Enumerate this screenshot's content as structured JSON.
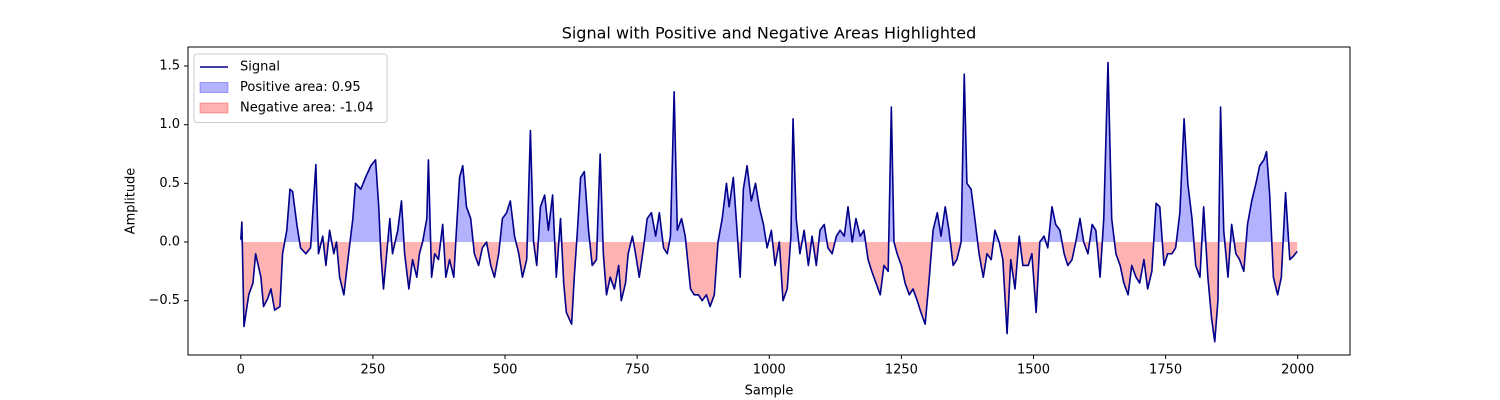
{
  "chart_data": {
    "type": "line",
    "title": "Signal with Positive and Negative Areas Highlighted",
    "xlabel": "Sample",
    "ylabel": "Amplitude",
    "xlim": [
      -99.95,
      2098.95
    ],
    "xticks": [
      0,
      250,
      500,
      750,
      1000,
      1250,
      1500,
      1750,
      2000
    ],
    "ylim": [
      -0.963,
      1.662
    ],
    "yticks": [
      {
        "value": -0.5,
        "label": "−0.5"
      },
      {
        "value": 0,
        "label": "0.0"
      },
      0.5,
      {
        "value": 1,
        "label": "1.0"
      },
      1.5
    ],
    "legend": "upper left",
    "x": [
      0,
      2,
      6,
      15,
      23,
      28,
      38,
      43,
      51,
      57,
      64,
      74,
      79,
      87,
      93,
      98,
      106,
      113,
      123,
      132,
      142,
      147,
      155,
      161,
      168,
      176,
      181,
      187,
      195,
      204,
      212,
      217,
      227,
      236,
      246,
      255,
      261,
      265,
      270,
      276,
      282,
      287,
      297,
      304,
      310,
      318,
      325,
      333,
      338,
      344,
      352,
      355,
      361,
      367,
      374,
      382,
      388,
      395,
      403,
      408,
      414,
      420,
      427,
      435,
      442,
      450,
      457,
      465,
      473,
      480,
      488,
      495,
      503,
      510,
      518,
      526,
      533,
      541,
      548,
      554,
      560,
      567,
      575,
      582,
      590,
      597,
      605,
      611,
      616,
      626,
      631,
      637,
      643,
      650,
      658,
      665,
      673,
      680,
      686,
      692,
      699,
      707,
      715,
      720,
      728,
      733,
      741,
      747,
      754,
      762,
      769,
      777,
      785,
      792,
      800,
      807,
      813,
      820,
      826,
      834,
      841,
      851,
      858,
      866,
      873,
      881,
      888,
      896,
      903,
      911,
      919,
      924,
      932,
      939,
      945,
      951,
      958,
      966,
      974,
      981,
      989,
      996,
      1004,
      1011,
      1019,
      1026,
      1034,
      1041,
      1045,
      1051,
      1058,
      1066,
      1074,
      1081,
      1089,
      1096,
      1104,
      1111,
      1119,
      1127,
      1134,
      1142,
      1149,
      1157,
      1164,
      1172,
      1179,
      1187,
      1194,
      1202,
      1210,
      1217,
      1225,
      1231,
      1236,
      1242,
      1250,
      1257,
      1265,
      1272,
      1280,
      1287,
      1295,
      1302,
      1310,
      1318,
      1325,
      1333,
      1340,
      1348,
      1355,
      1363,
      1369,
      1374,
      1382,
      1389,
      1397,
      1405,
      1412,
      1420,
      1427,
      1435,
      1442,
      1450,
      1457,
      1465,
      1473,
      1480,
      1490,
      1497,
      1505,
      1512,
      1520,
      1527,
      1535,
      1542,
      1550,
      1558,
      1565,
      1573,
      1580,
      1588,
      1595,
      1603,
      1611,
      1618,
      1626,
      1633,
      1641,
      1648,
      1656,
      1664,
      1671,
      1679,
      1686,
      1694,
      1701,
      1709,
      1716,
      1724,
      1732,
      1739,
      1747,
      1754,
      1762,
      1769,
      1777,
      1785,
      1792,
      1800,
      1807,
      1815,
      1822,
      1830,
      1837,
      1843,
      1849,
      1854,
      1860,
      1868,
      1875,
      1883,
      1890,
      1898,
      1905,
      1913,
      1921,
      1928,
      1936,
      1941,
      1947,
      1954,
      1962,
      1969,
      1977,
      1985,
      1992,
      1999
    ],
    "series": [
      {
        "name": "Signal",
        "color": "#00008b",
        "values": [
          0.02,
          0.17,
          -0.72,
          -0.45,
          -0.35,
          -0.1,
          -0.3,
          -0.55,
          -0.48,
          -0.4,
          -0.58,
          -0.55,
          -0.1,
          0.1,
          0.45,
          0.43,
          0.15,
          -0.05,
          -0.1,
          -0.05,
          0.66,
          -0.1,
          0.05,
          -0.2,
          0.1,
          -0.1,
          0.0,
          -0.3,
          -0.45,
          -0.1,
          0.2,
          0.5,
          0.45,
          0.55,
          0.65,
          0.7,
          0.3,
          -0.1,
          -0.4,
          -0.1,
          0.2,
          -0.1,
          0.1,
          0.35,
          -0.1,
          -0.4,
          -0.15,
          -0.3,
          -0.1,
          0.0,
          0.2,
          0.7,
          -0.3,
          -0.1,
          -0.15,
          0.15,
          -0.3,
          -0.15,
          -0.3,
          0.1,
          0.55,
          0.65,
          0.3,
          0.2,
          -0.1,
          -0.2,
          -0.05,
          0.0,
          -0.2,
          -0.3,
          -0.1,
          0.2,
          0.25,
          0.35,
          0.05,
          -0.1,
          -0.3,
          -0.15,
          0.95,
          0.0,
          -0.2,
          0.3,
          0.4,
          0.1,
          0.4,
          -0.3,
          0.2,
          -0.35,
          -0.6,
          -0.7,
          -0.3,
          0.1,
          0.55,
          0.6,
          0.1,
          -0.2,
          -0.15,
          0.75,
          -0.1,
          -0.45,
          -0.3,
          -0.4,
          -0.2,
          -0.5,
          -0.35,
          -0.1,
          0.05,
          -0.1,
          -0.3,
          -0.05,
          0.2,
          0.25,
          0.05,
          0.25,
          -0.05,
          -0.1,
          0.05,
          1.28,
          0.1,
          0.2,
          0.05,
          -0.4,
          -0.45,
          -0.45,
          -0.5,
          -0.45,
          -0.55,
          -0.45,
          0.0,
          0.2,
          0.5,
          0.3,
          0.55,
          0.1,
          -0.3,
          0.45,
          0.65,
          0.35,
          0.5,
          0.3,
          0.15,
          -0.05,
          0.1,
          -0.2,
          0.0,
          -0.5,
          -0.4,
          0.05,
          1.05,
          0.2,
          -0.1,
          0.1,
          -0.2,
          0.05,
          -0.2,
          0.1,
          0.15,
          -0.05,
          -0.1,
          0.05,
          0.1,
          0.05,
          0.3,
          0.0,
          0.2,
          0.05,
          0.1,
          -0.15,
          -0.25,
          -0.35,
          -0.45,
          -0.2,
          -0.25,
          1.15,
          0.0,
          -0.1,
          -0.2,
          -0.35,
          -0.45,
          -0.4,
          -0.5,
          -0.6,
          -0.7,
          -0.35,
          0.1,
          0.25,
          0.05,
          0.3,
          0.1,
          -0.2,
          -0.15,
          0.0,
          1.43,
          0.5,
          0.45,
          0.2,
          -0.1,
          -0.3,
          -0.1,
          -0.15,
          0.1,
          0.0,
          -0.15,
          -0.78,
          -0.15,
          -0.4,
          0.05,
          -0.2,
          -0.2,
          -0.1,
          -0.6,
          0.0,
          0.05,
          -0.05,
          0.3,
          0.15,
          0.1,
          -0.1,
          -0.2,
          -0.15,
          0.0,
          0.2,
          0.0,
          -0.1,
          0.15,
          0.1,
          -0.3,
          0.2,
          1.53,
          0.2,
          -0.1,
          -0.2,
          -0.35,
          -0.45,
          -0.2,
          -0.3,
          -0.35,
          -0.15,
          -0.4,
          -0.25,
          0.33,
          0.3,
          -0.2,
          -0.1,
          -0.1,
          -0.05,
          0.25,
          1.05,
          0.5,
          0.2,
          -0.2,
          -0.3,
          0.3,
          -0.3,
          -0.65,
          -0.85,
          -0.5,
          1.15,
          0.1,
          -0.3,
          0.15,
          -0.1,
          -0.15,
          -0.25,
          0.15,
          0.35,
          0.5,
          0.65,
          0.7,
          0.77,
          0.4,
          -0.3,
          -0.45,
          -0.3,
          0.42,
          -0.15,
          -0.12,
          -0.08
        ]
      }
    ],
    "fills": [
      {
        "name": "Positive area: 0.95",
        "color": "#0000ff",
        "side": "above"
      },
      {
        "name": "Negative area: -1.04",
        "color": "#ff0000",
        "side": "below"
      }
    ]
  }
}
